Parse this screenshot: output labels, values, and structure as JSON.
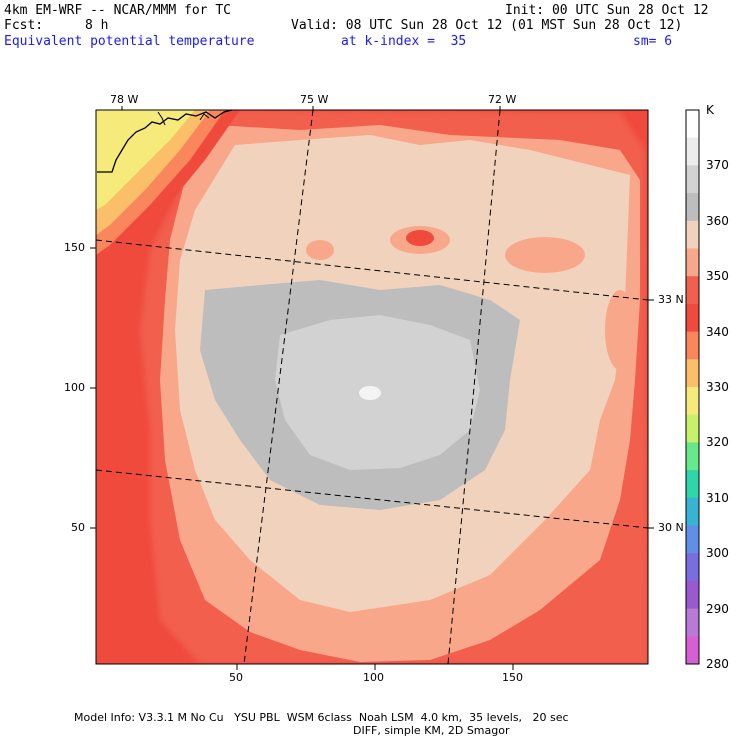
{
  "header": {
    "model": "4km EM-WRF -- NCAR/MMM for TC",
    "init": "Init: 00 UTC Sun 28 Oct 12",
    "fcst_label": "Fcst:",
    "fcst_value": "8 h",
    "valid": "Valid: 08 UTC Sun 28 Oct 12 (01 MST Sun 28 Oct 12)",
    "field": "Equivalent potential temperature",
    "level": "at k-index =  35",
    "smooth": "sm= 6"
  },
  "map": {
    "lon_labels": [
      "78 W",
      "75 W",
      "72 W"
    ],
    "lat_labels": [
      "33 N",
      "30 N"
    ],
    "x_ticks": [
      "50",
      "100",
      "150"
    ],
    "y_ticks": [
      "150",
      "100",
      "50"
    ]
  },
  "colorbar": {
    "unit": "K",
    "labels": [
      "370",
      "360",
      "350",
      "340",
      "330",
      "320",
      "310",
      "300",
      "290",
      "280"
    ],
    "colors": [
      "#ffffff",
      "#ececec",
      "#d2d2d2",
      "#bdbdbd",
      "#f1d2bd",
      "#f9a78b",
      "#f25f4e",
      "#ef4a3c",
      "#f9875b",
      "#fbbf69",
      "#f6ea7a",
      "#c7f06b",
      "#67e98b",
      "#2fd6a9",
      "#38b3d3",
      "#5f8fe6",
      "#7a6ddf",
      "#9a59cf",
      "#b87ad6",
      "#d65fd6"
    ]
  },
  "footer": {
    "line1": "Model Info: V3.3.1 M No Cu   YSU PBL  WSM 6class  Noah LSM  4.0 km,  35 levels,   20 sec",
    "line2": "DIFF, simple KM, 2D Smagor"
  }
}
